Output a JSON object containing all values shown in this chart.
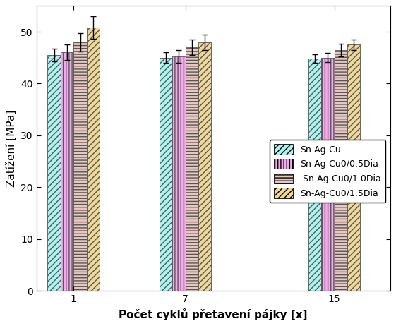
{
  "groups": [
    1,
    7,
    15
  ],
  "series": [
    {
      "label": "Sn-Ag-Cu",
      "values": [
        45.5,
        45.0,
        44.8
      ],
      "errors": [
        1.2,
        1.0,
        0.8
      ],
      "facecolor": "#aaf5f0",
      "edgecolor": "#555555",
      "hatch": "////"
    },
    {
      "label": "Sn-Ag-Cu0/0.5Dia",
      "values": [
        46.0,
        45.2,
        45.0
      ],
      "errors": [
        1.5,
        1.2,
        0.9
      ],
      "facecolor": "#f5aaee",
      "edgecolor": "#555555",
      "hatch": "||||"
    },
    {
      "label": " Sn-Ag-Cu0/1.0Dia",
      "values": [
        48.0,
        47.0,
        46.5
      ],
      "errors": [
        1.8,
        1.5,
        1.2
      ],
      "facecolor": "#e8c8c0",
      "edgecolor": "#555555",
      "hatch": "----"
    },
    {
      "label": "Sn-Ag-Cu0/1.5Dia",
      "values": [
        50.8,
        48.0,
        47.5
      ],
      "errors": [
        2.2,
        1.5,
        1.0
      ],
      "facecolor": "#f0d898",
      "edgecolor": "#555555",
      "hatch": "////"
    }
  ],
  "xlabel": "Počet cyklů přetavení pájky [x]",
  "ylabel": "Zatížení [MPa]",
  "ylim": [
    0,
    55
  ],
  "yticks": [
    0,
    10,
    20,
    30,
    40,
    50
  ],
  "bar_width": 0.7,
  "group_positions": [
    1,
    7,
    15
  ],
  "xlim": [
    -1,
    18
  ],
  "background_color": "#ffffff",
  "legend_fontsize": 9,
  "label_fontsize": 11
}
